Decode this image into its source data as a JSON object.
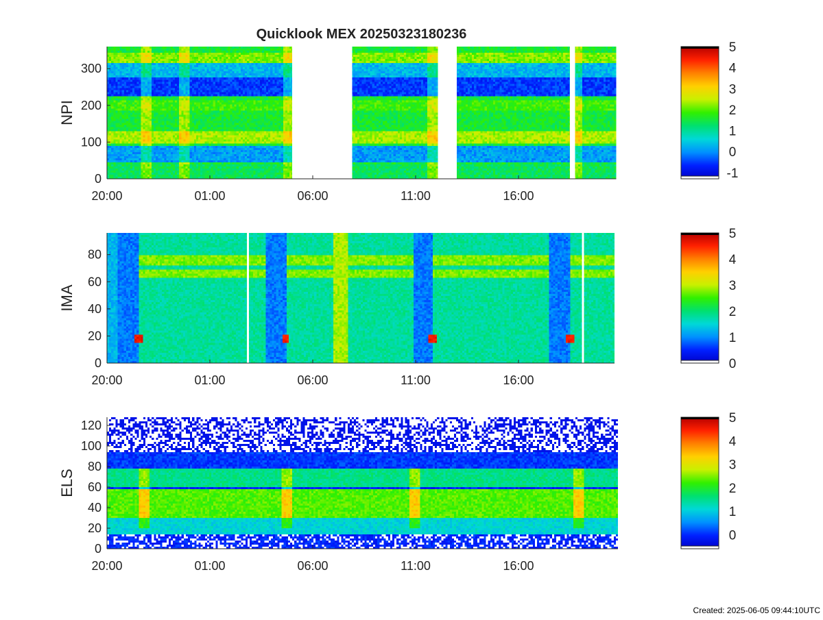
{
  "title": "Quicklook MEX 20250323180236",
  "footer": "Created: 2025-06-05 09:44:10UTC",
  "palette": [
    "#0000c8",
    "#0020ff",
    "#0090ff",
    "#00d8d8",
    "#00e070",
    "#30f000",
    "#c8f000",
    "#ffd000",
    "#ff8000",
    "#ff2000",
    "#b40000"
  ],
  "chart_data": [
    {
      "type": "heatmap",
      "ylabel": "NPI",
      "x_ticks": [
        "20:00",
        "01:00",
        "06:00",
        "11:00",
        "16:00"
      ],
      "x_range": [
        "20:00",
        "20:45"
      ],
      "y_ticks": [
        "0",
        "100",
        "200",
        "300"
      ],
      "ylim": [
        0,
        360
      ],
      "colorbar": {
        "range": [
          -1.3,
          5
        ],
        "ticks": [
          "5",
          "4",
          "3",
          "2",
          "1",
          "0",
          "-1"
        ]
      },
      "data_gaps": [
        [
          "05:00",
          "07:55"
        ],
        [
          "12:05",
          "13:00"
        ],
        [
          "18:30",
          "18:45"
        ]
      ]
    },
    {
      "type": "heatmap",
      "ylabel": "IMA",
      "x_ticks": [
        "20:00",
        "01:00",
        "06:00",
        "11:00",
        "16:00"
      ],
      "x_range": [
        "20:00",
        "20:40"
      ],
      "y_ticks": [
        "0",
        "20",
        "40",
        "60",
        "80"
      ],
      "ylim": [
        0,
        96
      ],
      "colorbar": {
        "range": [
          0,
          5
        ],
        "ticks": [
          "5",
          "4",
          "3",
          "2",
          "1",
          "0"
        ]
      },
      "data_gaps": [
        [
          "02:48",
          "02:54"
        ],
        [
          "19:05",
          "19:11"
        ]
      ]
    },
    {
      "type": "heatmap",
      "ylabel": "ELS",
      "x_ticks": [
        "20:00",
        "01:00",
        "06:00",
        "11:00",
        "16:00"
      ],
      "x_range": [
        "20:00",
        "20:50"
      ],
      "y_ticks": [
        "0",
        "20",
        "40",
        "60",
        "80",
        "100",
        "120"
      ],
      "ylim": [
        0,
        128
      ],
      "colorbar": {
        "range": [
          -0.6,
          5
        ],
        "ticks": [
          "5",
          "4",
          "3",
          "2",
          "1",
          "0"
        ]
      },
      "data_gaps": []
    }
  ]
}
